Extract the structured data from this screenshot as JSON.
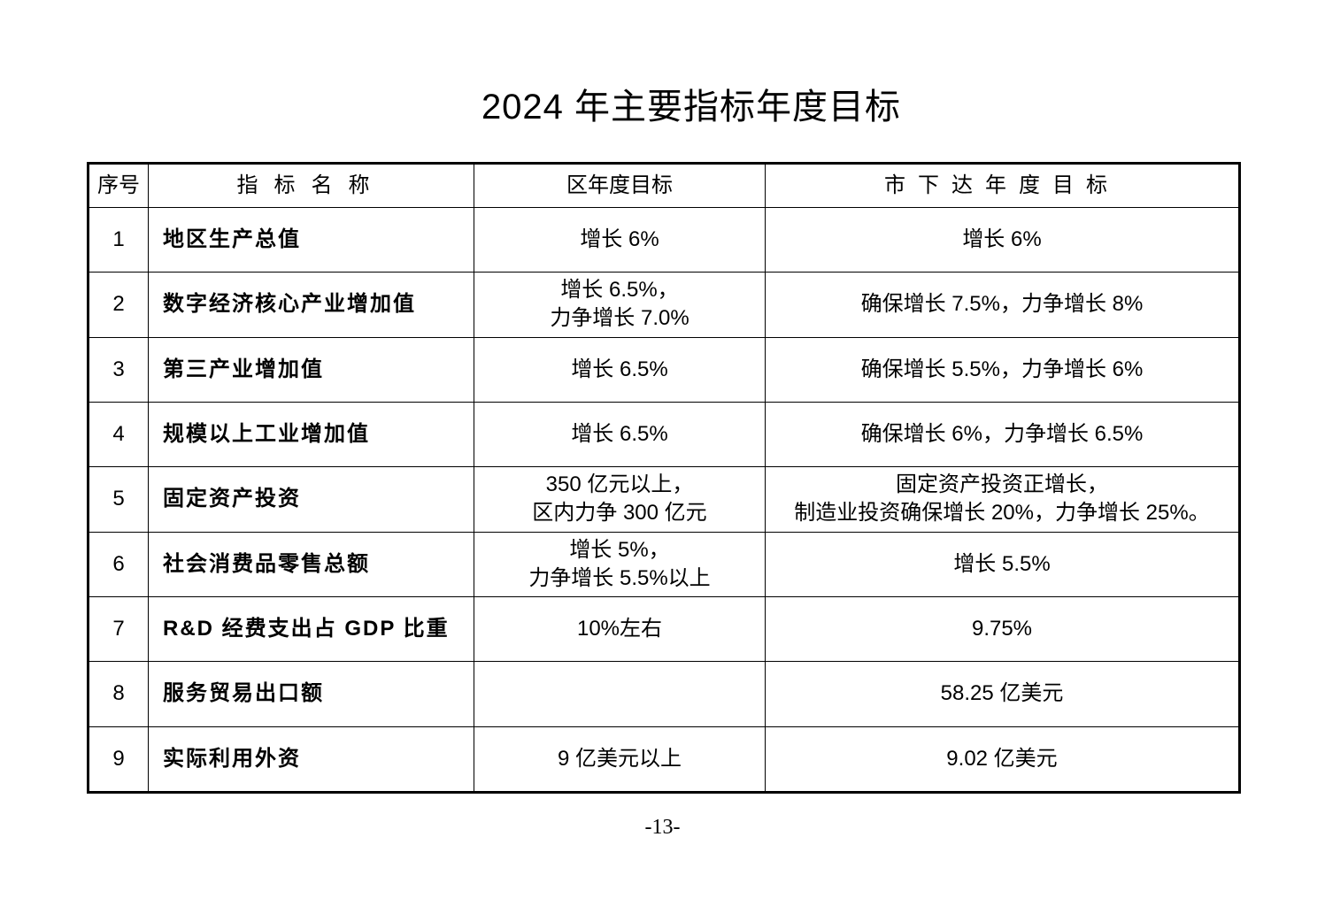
{
  "title": "2024 年主要指标年度目标",
  "table": {
    "headers": [
      "序号",
      "指标名称",
      "区年度目标",
      "市下达年度目标"
    ],
    "rows": [
      {
        "no": "1",
        "name": "地区生产总值",
        "district": "增长 6%",
        "city": "增长 6%"
      },
      {
        "no": "2",
        "name": "数字经济核心产业增加值",
        "district": "增长 6.5%，\n力争增长 7.0%",
        "city": "确保增长 7.5%，力争增长 8%"
      },
      {
        "no": "3",
        "name": "第三产业增加值",
        "district": "增长 6.5%",
        "city": "确保增长 5.5%，力争增长 6%"
      },
      {
        "no": "4",
        "name": "规模以上工业增加值",
        "district": "增长 6.5%",
        "city": "确保增长 6%，力争增长 6.5%"
      },
      {
        "no": "5",
        "name": "固定资产投资",
        "district": "350 亿元以上，\n区内力争 300 亿元",
        "city": "固定资产投资正增长，\n制造业投资确保增长 20%，力争增长 25%。"
      },
      {
        "no": "6",
        "name": "社会消费品零售总额",
        "district": "增长 5%，\n力争增长 5.5%以上",
        "city": "增长 5.5%"
      },
      {
        "no": "7",
        "name": "R&D 经费支出占 GDP 比重",
        "district": "10%左右",
        "city": "9.75%"
      },
      {
        "no": "8",
        "name": "服务贸易出口额",
        "district": "",
        "city": "58.25 亿美元"
      },
      {
        "no": "9",
        "name": "实际利用外资",
        "district": "9 亿美元以上",
        "city": "9.02 亿美元"
      }
    ]
  },
  "page_number": "-13-"
}
